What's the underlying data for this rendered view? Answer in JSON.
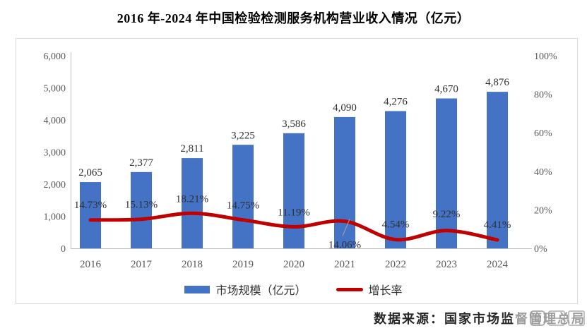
{
  "chart_data": {
    "type": "bar+line",
    "title": "2016 年-2024 年中国检验检测服务机构营业收入情况（亿元）",
    "categories": [
      "2016",
      "2017",
      "2018",
      "2019",
      "2020",
      "2021",
      "2022",
      "2023",
      "2024"
    ],
    "series": [
      {
        "name": "市场规模（亿元）",
        "type": "bar",
        "axis": "left",
        "color": "#4472C4",
        "values": [
          2065,
          2377,
          2811,
          3225,
          3586,
          4090,
          4276,
          4670,
          4876
        ],
        "labels": [
          "2,065",
          "2,377",
          "2,811",
          "3,225",
          "3,586",
          "4,090",
          "4,276",
          "4,670",
          "4,876"
        ]
      },
      {
        "name": "增长率",
        "type": "line",
        "axis": "right",
        "color": "#C00000",
        "values": [
          14.73,
          15.13,
          18.21,
          14.75,
          11.19,
          14.06,
          4.54,
          9.22,
          4.41
        ],
        "labels": [
          "14.73%",
          "15.13%",
          "18.21%",
          "14.75%",
          "11.19%",
          "14.06%",
          "4.54%",
          "9.22%",
          "4.41%"
        ]
      }
    ],
    "left_axis": {
      "min": 0,
      "max": 6000,
      "ticks": [
        "0",
        "1,000",
        "2,000",
        "3,000",
        "4,000",
        "5,000",
        "6,000"
      ]
    },
    "right_axis": {
      "min": 0,
      "max": 100,
      "ticks": [
        "0%",
        "20%",
        "40%",
        "60%",
        "80%",
        "100%"
      ]
    },
    "legend_position": "bottom",
    "gridlines": false
  },
  "source": {
    "text": "数据来源：国家市场监督管理总局"
  },
  "colors": {
    "bar": "#4472C4",
    "line": "#C00000",
    "axis": "#BFBFBF",
    "tick_text": "#595959",
    "value_text": "#303030",
    "frame_border": "#D9D9D9"
  }
}
